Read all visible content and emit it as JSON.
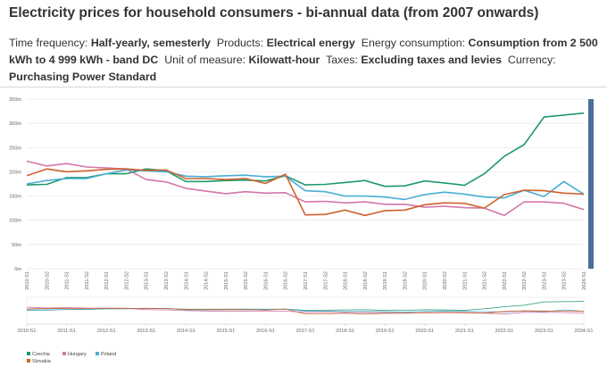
{
  "page": {
    "title": "Electricity prices for household consumers - bi-annual data (from 2007 onwards)",
    "meta": [
      {
        "label": "Time frequency:",
        "value": "Half-yearly, semesterly"
      },
      {
        "label": "Products:",
        "value": "Electrical energy"
      },
      {
        "label": "Energy consumption:",
        "value": "Consumption from 2 500 kWh to 4 999 kWh - band DC"
      },
      {
        "label": "Unit of measure:",
        "value": "Kilowatt-hour"
      },
      {
        "label": "Taxes:",
        "value": "Excluding taxes and levies"
      },
      {
        "label": "Currency:",
        "value": "Purchasing Power Standard"
      }
    ]
  },
  "chart_data": {
    "type": "line",
    "title": "Electricity prices for household consumers - bi-annual data (from 2007 onwards)",
    "xlabel": "",
    "ylabel": "",
    "ylim": [
      0,
      350
    ],
    "y_ticks": [
      0,
      50,
      100,
      150,
      200,
      250,
      300,
      350
    ],
    "y_tick_labels": [
      "0m",
      "50m",
      "100m",
      "150m",
      "200m",
      "250m",
      "300m",
      "350m"
    ],
    "grid": true,
    "legend_position": "bottom-left",
    "categories": [
      "2010-S1",
      "2010-S2",
      "2011-S1",
      "2011-S2",
      "2012-S1",
      "2012-S2",
      "2013-S1",
      "2013-S2",
      "2014-S1",
      "2014-S2",
      "2015-S1",
      "2015-S2",
      "2016-S1",
      "2016-S2",
      "2017-S1",
      "2017-S2",
      "2018-S1",
      "2018-S2",
      "2019-S1",
      "2019-S2",
      "2020-S1",
      "2020-S2",
      "2021-S1",
      "2021-S2",
      "2022-S1",
      "2022-S2",
      "2023-S1",
      "2023-S2",
      "2024-S1"
    ],
    "series": [
      {
        "name": "Czechia",
        "color": "#1e9a6e",
        "values": [
          173,
          174,
          188,
          188,
          196,
          196,
          206,
          202,
          180,
          180,
          182,
          183,
          181,
          192,
          173,
          174,
          178,
          182,
          170,
          171,
          181,
          177,
          172,
          196,
          232,
          256,
          313,
          317,
          321
        ]
      },
      {
        "name": "Hungary",
        "color": "#d277a8",
        "values": [
          222,
          212,
          217,
          210,
          208,
          206,
          184,
          179,
          166,
          160,
          155,
          159,
          156,
          157,
          138,
          139,
          136,
          138,
          133,
          133,
          127,
          129,
          126,
          125,
          110,
          138,
          138,
          135,
          122
        ]
      },
      {
        "name": "Poland",
        "color": "#4aadd6",
        "values": [
          175,
          182,
          186,
          186,
          196,
          204,
          202,
          200,
          191,
          190,
          192,
          193,
          190,
          191,
          161,
          159,
          150,
          150,
          148,
          143,
          153,
          158,
          154,
          148,
          146,
          162,
          149,
          180,
          154
        ]
      },
      {
        "name": "Slovakia",
        "color": "#d0622e",
        "values": [
          192,
          206,
          200,
          202,
          205,
          206,
          203,
          204,
          186,
          186,
          184,
          186,
          176,
          195,
          111,
          112,
          121,
          110,
          120,
          121,
          132,
          136,
          135,
          125,
          153,
          162,
          161,
          156,
          154
        ]
      }
    ],
    "navigator": {
      "tick_labels": [
        "2010-S1",
        "2011-S1",
        "2012-S1",
        "2013-S1",
        "2014-S1",
        "2015-S1",
        "2016-S1",
        "2017-S1",
        "2018-S1",
        "2019-S1",
        "2020-S1",
        "2021-S1",
        "2022-S1",
        "2023-S1",
        "2024-S1"
      ]
    }
  }
}
